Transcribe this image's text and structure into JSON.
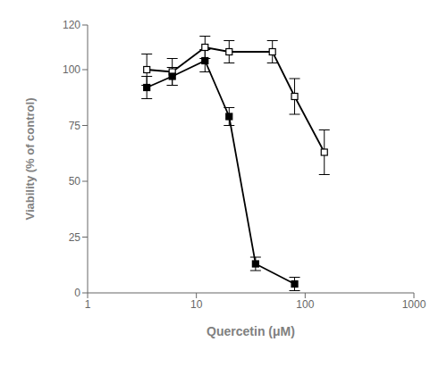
{
  "chart_data": {
    "type": "line",
    "xlabel": "Quercetin (μM)",
    "ylabel": "Viability (% of control)",
    "log": "x",
    "xlim": [
      1,
      1000
    ],
    "ylim": [
      0,
      120
    ],
    "xticks": [
      1,
      10,
      100,
      1000
    ],
    "yticks": [
      0,
      25,
      50,
      75,
      100,
      120
    ],
    "grid": false,
    "series": [
      {
        "color": "#000000",
        "marker": "square_open",
        "line_style": "solid",
        "x": [
          3.5,
          6,
          12,
          20,
          50,
          80,
          150
        ],
        "values": [
          100,
          99,
          110,
          108,
          108,
          88,
          63
        ],
        "errors": [
          7,
          6,
          5,
          5,
          5,
          8,
          10
        ]
      },
      {
        "color": "#000000",
        "marker": "square",
        "line_style": "solid",
        "x": [
          3.5,
          6,
          12,
          20,
          35,
          80
        ],
        "values": [
          92,
          97,
          104,
          79,
          13,
          4
        ],
        "errors": [
          5,
          4,
          5,
          4,
          3,
          3
        ]
      }
    ]
  }
}
